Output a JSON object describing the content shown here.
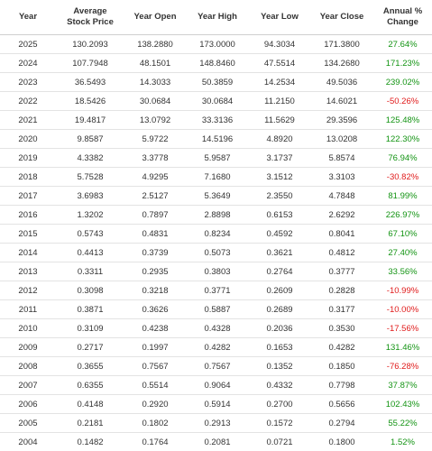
{
  "table": {
    "columns": [
      "Year",
      "Average\nStock Price",
      "Year Open",
      "Year High",
      "Year Low",
      "Year Close",
      "Annual %\nChange"
    ],
    "rows": [
      {
        "year": "2025",
        "avg": "130.2093",
        "open": "138.2880",
        "high": "173.0000",
        "low": "94.3034",
        "close": "171.3800",
        "change": "27.64%",
        "dir": "pos"
      },
      {
        "year": "2024",
        "avg": "107.7948",
        "open": "48.1501",
        "high": "148.8460",
        "low": "47.5514",
        "close": "134.2680",
        "change": "171.23%",
        "dir": "pos"
      },
      {
        "year": "2023",
        "avg": "36.5493",
        "open": "14.3033",
        "high": "50.3859",
        "low": "14.2534",
        "close": "49.5036",
        "change": "239.02%",
        "dir": "pos"
      },
      {
        "year": "2022",
        "avg": "18.5426",
        "open": "30.0684",
        "high": "30.0684",
        "low": "11.2150",
        "close": "14.6021",
        "change": "-50.26%",
        "dir": "neg"
      },
      {
        "year": "2021",
        "avg": "19.4817",
        "open": "13.0792",
        "high": "33.3136",
        "low": "11.5629",
        "close": "29.3596",
        "change": "125.48%",
        "dir": "pos"
      },
      {
        "year": "2020",
        "avg": "9.8587",
        "open": "5.9722",
        "high": "14.5196",
        "low": "4.8920",
        "close": "13.0208",
        "change": "122.30%",
        "dir": "pos"
      },
      {
        "year": "2019",
        "avg": "4.3382",
        "open": "3.3778",
        "high": "5.9587",
        "low": "3.1737",
        "close": "5.8574",
        "change": "76.94%",
        "dir": "pos"
      },
      {
        "year": "2018",
        "avg": "5.7528",
        "open": "4.9295",
        "high": "7.1680",
        "low": "3.1512",
        "close": "3.3103",
        "change": "-30.82%",
        "dir": "neg"
      },
      {
        "year": "2017",
        "avg": "3.6983",
        "open": "2.5127",
        "high": "5.3649",
        "low": "2.3550",
        "close": "4.7848",
        "change": "81.99%",
        "dir": "pos"
      },
      {
        "year": "2016",
        "avg": "1.3202",
        "open": "0.7897",
        "high": "2.8898",
        "low": "0.6153",
        "close": "2.6292",
        "change": "226.97%",
        "dir": "pos"
      },
      {
        "year": "2015",
        "avg": "0.5743",
        "open": "0.4831",
        "high": "0.8234",
        "low": "0.4592",
        "close": "0.8041",
        "change": "67.10%",
        "dir": "pos"
      },
      {
        "year": "2014",
        "avg": "0.4413",
        "open": "0.3739",
        "high": "0.5073",
        "low": "0.3621",
        "close": "0.4812",
        "change": "27.40%",
        "dir": "pos"
      },
      {
        "year": "2013",
        "avg": "0.3311",
        "open": "0.2935",
        "high": "0.3803",
        "low": "0.2764",
        "close": "0.3777",
        "change": "33.56%",
        "dir": "pos"
      },
      {
        "year": "2012",
        "avg": "0.3098",
        "open": "0.3218",
        "high": "0.3771",
        "low": "0.2609",
        "close": "0.2828",
        "change": "-10.99%",
        "dir": "neg"
      },
      {
        "year": "2011",
        "avg": "0.3871",
        "open": "0.3626",
        "high": "0.5887",
        "low": "0.2689",
        "close": "0.3177",
        "change": "-10.00%",
        "dir": "neg"
      },
      {
        "year": "2010",
        "avg": "0.3109",
        "open": "0.4238",
        "high": "0.4328",
        "low": "0.2036",
        "close": "0.3530",
        "change": "-17.56%",
        "dir": "neg"
      },
      {
        "year": "2009",
        "avg": "0.2717",
        "open": "0.1997",
        "high": "0.4282",
        "low": "0.1653",
        "close": "0.4282",
        "change": "131.46%",
        "dir": "pos"
      },
      {
        "year": "2008",
        "avg": "0.3655",
        "open": "0.7567",
        "high": "0.7567",
        "low": "0.1352",
        "close": "0.1850",
        "change": "-76.28%",
        "dir": "neg"
      },
      {
        "year": "2007",
        "avg": "0.6355",
        "open": "0.5514",
        "high": "0.9064",
        "low": "0.4332",
        "close": "0.7798",
        "change": "37.87%",
        "dir": "pos"
      },
      {
        "year": "2006",
        "avg": "0.4148",
        "open": "0.2920",
        "high": "0.5914",
        "low": "0.2700",
        "close": "0.5656",
        "change": "102.43%",
        "dir": "pos"
      },
      {
        "year": "2005",
        "avg": "0.2181",
        "open": "0.1802",
        "high": "0.2913",
        "low": "0.1572",
        "close": "0.2794",
        "change": "55.22%",
        "dir": "pos"
      },
      {
        "year": "2004",
        "avg": "0.1482",
        "open": "0.1764",
        "high": "0.2081",
        "low": "0.0721",
        "close": "0.1800",
        "change": "1.52%",
        "dir": "pos"
      }
    ]
  },
  "colors": {
    "positive": "#149414",
    "negative": "#e01b1b",
    "text": "#333333",
    "row_border": "#e3e3e3"
  }
}
